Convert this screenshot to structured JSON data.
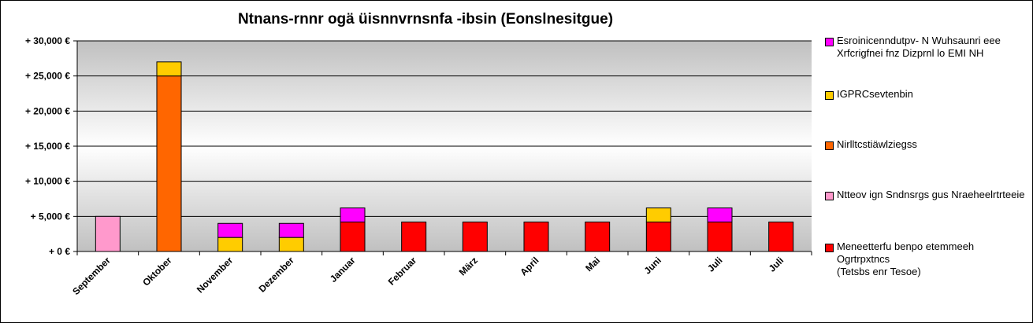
{
  "chart_data": {
    "type": "bar",
    "stacked": true,
    "title": "Ntnans-rnnr ogä üisnnvrnsnfa -ibsin (Eonslnesitgue)",
    "categories": [
      "September",
      "Oktober",
      "November",
      "Dezember",
      "Januar",
      "Februar",
      "März",
      "April",
      "Mai",
      "Juni",
      "Juli",
      "Juli"
    ],
    "yticks": [
      "+ 0 €",
      "+ 5,000 €",
      "+ 10,000 €",
      "+ 15,000 €",
      "+ 20,000 €",
      "+ 25,000 €",
      "+ 30,000 €"
    ],
    "ylim": [
      0,
      30000
    ],
    "grid": true,
    "legend_position": "right",
    "series": [
      {
        "name": "Meneetterfu benpo etemmeeh Ogrtrpxtncs\n(Tetsbs enr Tesoe)",
        "color": "#ff0000",
        "values": [
          0,
          0,
          0,
          0,
          4200,
          4200,
          4200,
          4200,
          4200,
          4200,
          4200,
          4200
        ]
      },
      {
        "name": "Ntteov ign Sndnsrgs gus Nraeheelrtrteeie",
        "color": "#ff99cc",
        "values": [
          5000,
          0,
          0,
          0,
          0,
          0,
          0,
          0,
          0,
          0,
          0,
          0
        ]
      },
      {
        "name": "Nirlltcstiäwlziegss",
        "color": "#ff6600",
        "values": [
          0,
          25000,
          0,
          0,
          0,
          0,
          0,
          0,
          0,
          0,
          0,
          0
        ]
      },
      {
        "name": "IGPRCsevtenbin",
        "color": "#ffcc00",
        "values": [
          0,
          2000,
          2000,
          2000,
          0,
          0,
          0,
          0,
          0,
          2000,
          0,
          0
        ]
      },
      {
        "name": "Esroinicenndutpv- N Wuhsaunri eee Xrfcrigfnei fnz Dizprnl lo EMI NH",
        "color": "#ff00ff",
        "values": [
          0,
          0,
          2000,
          2000,
          2000,
          0,
          0,
          0,
          0,
          0,
          2000,
          0
        ]
      }
    ],
    "legend_order": [
      4,
      3,
      2,
      1,
      0
    ]
  }
}
